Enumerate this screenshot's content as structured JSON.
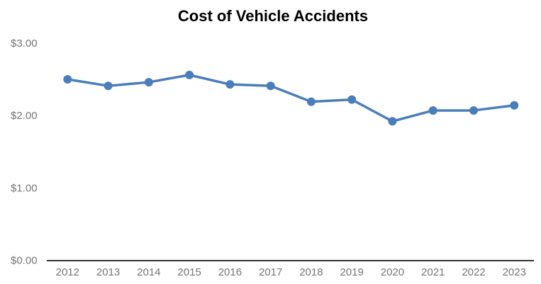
{
  "chart_data": {
    "type": "line",
    "title": "Cost of Vehicle Accidents",
    "categories": [
      "2012",
      "2013",
      "2014",
      "2015",
      "2016",
      "2017",
      "2018",
      "2019",
      "2020",
      "2021",
      "2022",
      "2023"
    ],
    "values": [
      2.5,
      2.41,
      2.46,
      2.56,
      2.43,
      2.41,
      2.19,
      2.22,
      1.92,
      2.07,
      2.07,
      2.14
    ],
    "xlabel": "",
    "ylabel": "",
    "ylim": [
      0,
      3
    ],
    "yticks": [
      {
        "value": 0,
        "label": "$0.00"
      },
      {
        "value": 1,
        "label": "$1.00"
      },
      {
        "value": 2,
        "label": "$2.00"
      },
      {
        "value": 3,
        "label": "$3.00"
      }
    ],
    "grid": false,
    "legend": "none",
    "marker": "circle",
    "colors": {
      "line": "#4a7ebb",
      "title": "#000000",
      "tick_label": "#757575",
      "axis_line": "#333333",
      "background": "#ffffff"
    }
  }
}
